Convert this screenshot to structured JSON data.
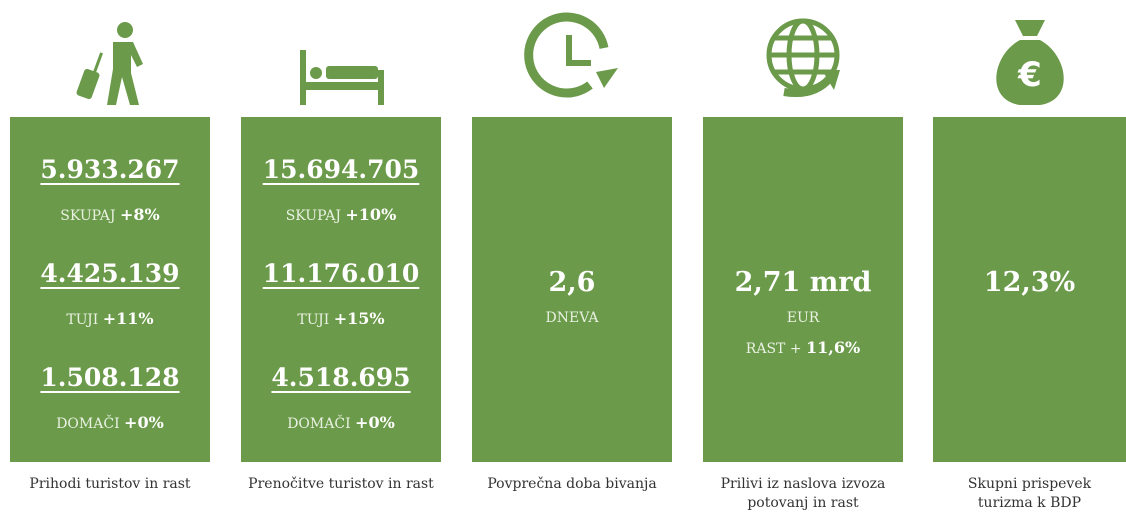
{
  "panels": [
    {
      "caption": "Prihodi turistov in rast",
      "stats": [
        {
          "value": "5.933.267",
          "label": "SKUPAJ",
          "change": "+8%"
        },
        {
          "value": "4.425.139",
          "label": "TUJI",
          "change": "+11%"
        },
        {
          "value": "1.508.128",
          "label": "DOMAČI",
          "change": "+0%"
        }
      ]
    },
    {
      "caption": "Prenočitve turistov in rast",
      "stats": [
        {
          "value": "15.694.705",
          "label": "SKUPAJ",
          "change": "+10%"
        },
        {
          "value": "11.176.010",
          "label": "TUJI",
          "change": "+15%"
        },
        {
          "value": "4.518.695",
          "label": "DOMAČI",
          "change": "+0%"
        }
      ]
    },
    {
      "caption": "Povprečna doba bivanja",
      "main": "2,6",
      "lines": [
        {
          "label": "DNEVA"
        }
      ]
    },
    {
      "caption": "Prilivi iz naslova izvoza potovanj in rast",
      "main": "2,71 mrd",
      "lines": [
        {
          "label": "EUR"
        },
        {
          "label": "RAST +",
          "change": "11,6%"
        }
      ]
    },
    {
      "caption": "Skupni prispevek turizma k BDP",
      "main": "12,3%",
      "lines": []
    }
  ]
}
